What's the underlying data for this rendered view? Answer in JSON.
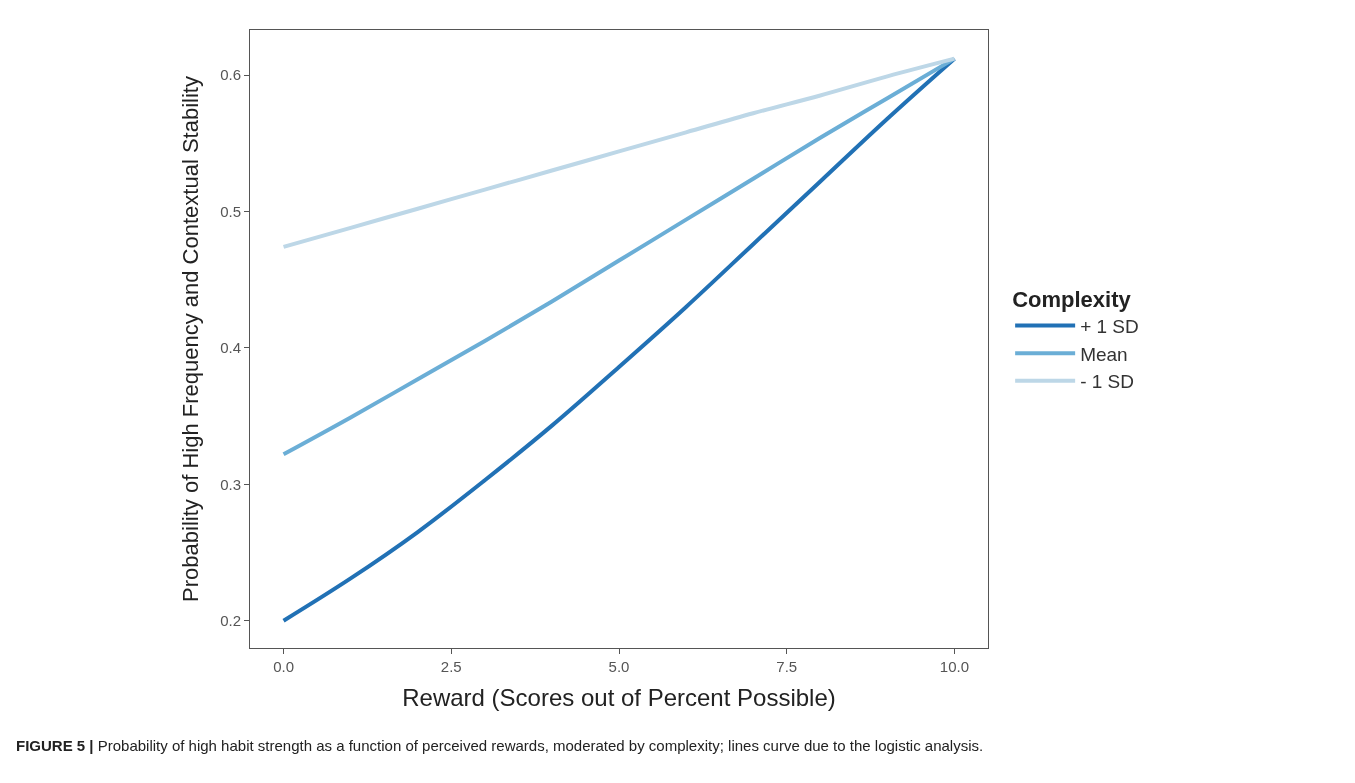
{
  "chart_data": {
    "type": "line",
    "xlabel": "Reward (Scores out of Percent Possible)",
    "ylabel": "Probability of High Frequency and Contextual Stability",
    "legend_title": "Complexity",
    "x": [
      0,
      1,
      2,
      3,
      4,
      5,
      6,
      7,
      8,
      9,
      10
    ],
    "series": [
      {
        "name": "+ 1 SD",
        "color": "#2171b5",
        "values": [
          0.2,
          0.231,
          0.265,
          0.303,
          0.343,
          0.386,
          0.43,
          0.476,
          0.522,
          0.568,
          0.612
        ]
      },
      {
        "name": "Mean",
        "color": "#6baed6",
        "values": [
          0.322,
          0.349,
          0.377,
          0.405,
          0.434,
          0.464,
          0.494,
          0.524,
          0.554,
          0.583,
          0.612
        ]
      },
      {
        "name": "- 1 SD",
        "color": "#bdd7e7",
        "values": [
          0.474,
          0.488,
          0.502,
          0.516,
          0.53,
          0.544,
          0.558,
          0.572,
          0.585,
          0.599,
          0.612
        ]
      }
    ],
    "xlim": [
      -0.5,
      10.5
    ],
    "xticks": [
      {
        "value": 0,
        "label": "0.0"
      },
      2.5,
      {
        "value": 5,
        "label": "5.0"
      },
      7.5,
      {
        "value": 10,
        "label": "10.0"
      }
    ],
    "ylim": [
      0.18,
      0.633
    ],
    "yticks": [
      0.2,
      0.3,
      0.4,
      0.5,
      0.6
    ],
    "grid": false,
    "legend": "right",
    "marker": "none",
    "line_style": "solid",
    "annotations": [
      "FIGURE 5 | Probability of high habit strength as a function of perceived rewards, moderated by complexity; lines curve due to the logistic analysis."
    ]
  }
}
